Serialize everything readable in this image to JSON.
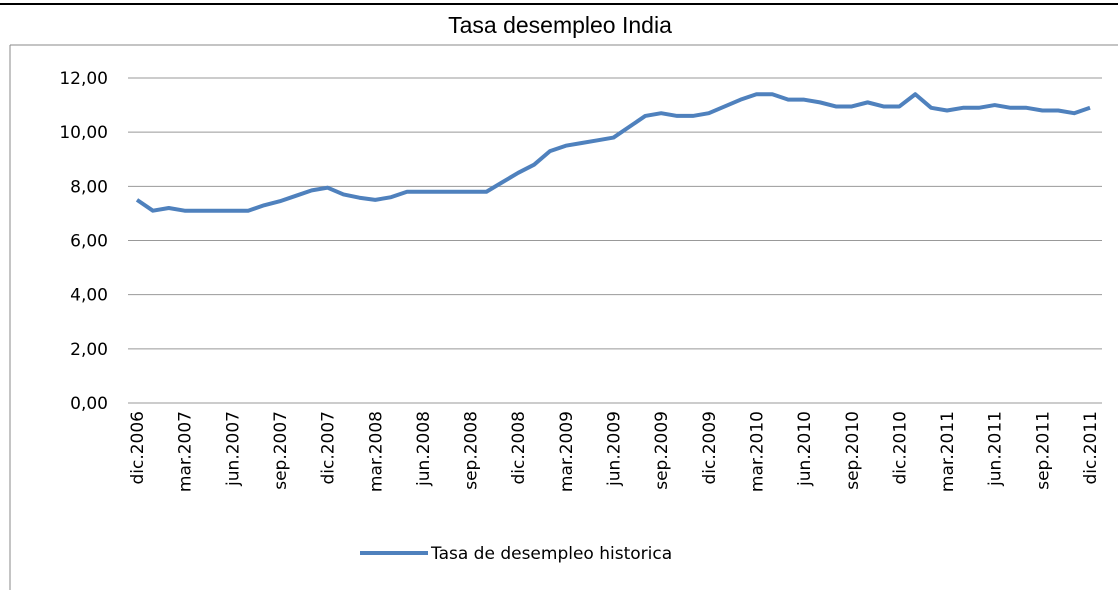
{
  "chart_data": {
    "type": "line",
    "title": "Tasa desempleo India",
    "categories": [
      "dic.2006",
      null,
      null,
      "mar.2007",
      null,
      null,
      "jun.2007",
      null,
      null,
      "sep.2007",
      null,
      null,
      "dic.2007",
      null,
      null,
      "mar.2008",
      null,
      null,
      "jun.2008",
      null,
      null,
      "sep.2008",
      null,
      null,
      "dic.2008",
      null,
      null,
      "mar.2009",
      null,
      null,
      "jun.2009",
      null,
      null,
      "sep.2009",
      null,
      null,
      "dic.2009",
      null,
      null,
      "mar.2010",
      null,
      null,
      "jun.2010",
      null,
      null,
      "sep.2010",
      null,
      null,
      "dic.2010",
      null,
      null,
      "mar.2011",
      null,
      null,
      "jun.2011",
      null,
      null,
      "sep.2011",
      null,
      null,
      "dic.2011"
    ],
    "series": [
      {
        "name": "Tasa de desempleo historica",
        "color": "#4f81bd",
        "values": [
          7.5,
          7.1,
          7.2,
          7.1,
          7.1,
          7.1,
          7.1,
          7.1,
          7.3,
          7.45,
          7.65,
          7.85,
          7.95,
          7.7,
          7.58,
          7.5,
          7.6,
          7.8,
          7.8,
          7.8,
          7.8,
          7.8,
          7.8,
          8.15,
          8.5,
          8.8,
          9.3,
          9.5,
          9.6,
          9.7,
          9.8,
          10.2,
          10.6,
          10.7,
          10.6,
          10.6,
          10.7,
          10.95,
          11.2,
          11.4,
          11.4,
          11.2,
          11.2,
          11.1,
          10.95,
          10.95,
          11.1,
          10.95,
          10.95,
          11.4,
          10.9,
          10.8,
          10.9,
          10.9,
          11.0,
          10.9,
          10.9,
          10.8,
          10.8,
          10.7,
          10.9
        ]
      }
    ],
    "ylim": [
      0,
      12
    ],
    "yticks": [
      {
        "value": 0,
        "label": "0,00"
      },
      {
        "value": 2,
        "label": "2,00"
      },
      {
        "value": 4,
        "label": "4,00"
      },
      {
        "value": 6,
        "label": "6,00"
      },
      {
        "value": 8,
        "label": "8,00"
      },
      {
        "value": 10,
        "label": "10,00"
      },
      {
        "value": 12,
        "label": "12,00"
      }
    ],
    "grid": true,
    "legend": "bottom"
  }
}
